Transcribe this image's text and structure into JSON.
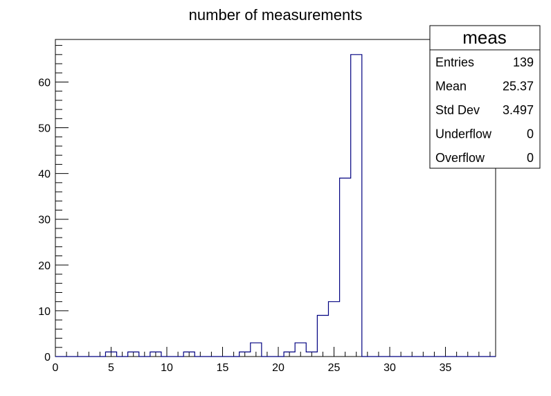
{
  "chart_data": {
    "type": "bar",
    "style": "step-histogram",
    "title": "number of measurements",
    "xlabel": "",
    "ylabel": "",
    "xlim": [
      0,
      39.5
    ],
    "ylim": [
      0,
      69.3
    ],
    "x_ticks": [
      0,
      5,
      10,
      15,
      20,
      25,
      30,
      35
    ],
    "y_ticks": [
      0,
      10,
      20,
      30,
      40,
      50,
      60
    ],
    "grid": false,
    "line_color": "#000080",
    "bins": [
      {
        "x0": 4.5,
        "x1": 5.5,
        "value": 1
      },
      {
        "x0": 6.5,
        "x1": 7.5,
        "value": 1
      },
      {
        "x0": 8.5,
        "x1": 9.5,
        "value": 1
      },
      {
        "x0": 11.5,
        "x1": 12.5,
        "value": 1
      },
      {
        "x0": 16.5,
        "x1": 17.5,
        "value": 1
      },
      {
        "x0": 17.5,
        "x1": 18.5,
        "value": 3
      },
      {
        "x0": 20.5,
        "x1": 21.5,
        "value": 1
      },
      {
        "x0": 21.5,
        "x1": 22.5,
        "value": 3
      },
      {
        "x0": 22.5,
        "x1": 23.5,
        "value": 1
      },
      {
        "x0": 23.5,
        "x1": 24.5,
        "value": 9
      },
      {
        "x0": 24.5,
        "x1": 25.5,
        "value": 12
      },
      {
        "x0": 25.5,
        "x1": 26.5,
        "value": 39
      },
      {
        "x0": 26.5,
        "x1": 27.5,
        "value": 66
      }
    ],
    "stats_box": {
      "title": "meas",
      "placement": "top-right",
      "rows": [
        {
          "label": "Entries",
          "value": "139"
        },
        {
          "label": "Mean",
          "value": "25.37"
        },
        {
          "label": "Std Dev",
          "value": "3.497"
        },
        {
          "label": "Underflow",
          "value": "0"
        },
        {
          "label": "Overflow",
          "value": "0"
        }
      ]
    }
  }
}
